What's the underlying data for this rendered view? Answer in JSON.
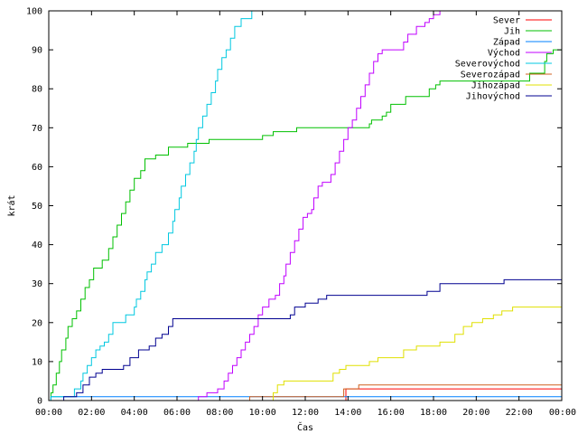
{
  "chart_data": {
    "type": "line",
    "xlabel": "Čas",
    "ylabel": "krát",
    "xlim": [
      0,
      24
    ],
    "ylim": [
      0,
      100
    ],
    "x_ticks": [
      0,
      2,
      4,
      6,
      8,
      10,
      12,
      14,
      16,
      18,
      20,
      22,
      24
    ],
    "x_tick_labels": [
      "00:00",
      "02:00",
      "04:00",
      "06:00",
      "08:00",
      "10:00",
      "12:00",
      "14:00",
      "16:00",
      "18:00",
      "20:00",
      "22:00",
      "00:00"
    ],
    "y_ticks": [
      0,
      10,
      20,
      30,
      40,
      50,
      60,
      70,
      80,
      90,
      100
    ],
    "y_tick_labels": [
      "0",
      "10",
      "20",
      "30",
      "40",
      "50",
      "60",
      "70",
      "80",
      "90",
      "100"
    ],
    "grid": false,
    "legend_position": "top-right",
    "step": true,
    "series": [
      {
        "name": "Sever",
        "color": "#ff0000",
        "points": [
          [
            0,
            0
          ],
          [
            13.9,
            0
          ],
          [
            13.9,
            3
          ],
          [
            24,
            3
          ]
        ]
      },
      {
        "name": "Jih",
        "color": "#00c000",
        "points": [
          [
            0,
            0
          ],
          [
            0.1,
            2
          ],
          [
            0.2,
            4
          ],
          [
            0.35,
            7
          ],
          [
            0.5,
            10
          ],
          [
            0.6,
            13
          ],
          [
            0.8,
            16
          ],
          [
            0.9,
            19
          ],
          [
            1.1,
            21
          ],
          [
            1.3,
            23
          ],
          [
            1.5,
            26
          ],
          [
            1.7,
            29
          ],
          [
            1.9,
            31
          ],
          [
            2.1,
            34
          ],
          [
            2.5,
            36
          ],
          [
            2.8,
            39
          ],
          [
            3.0,
            42
          ],
          [
            3.2,
            45
          ],
          [
            3.4,
            48
          ],
          [
            3.6,
            51
          ],
          [
            3.8,
            54
          ],
          [
            4.0,
            57
          ],
          [
            4.3,
            59
          ],
          [
            4.5,
            62
          ],
          [
            5.0,
            63
          ],
          [
            5.6,
            65
          ],
          [
            6.5,
            66
          ],
          [
            7.5,
            67
          ],
          [
            10.0,
            68
          ],
          [
            10.5,
            69
          ],
          [
            11.3,
            69
          ],
          [
            11.6,
            70
          ],
          [
            13.0,
            70
          ],
          [
            14.0,
            70
          ],
          [
            15.0,
            71
          ],
          [
            15.1,
            72
          ],
          [
            15.6,
            73
          ],
          [
            15.8,
            74
          ],
          [
            16.0,
            76
          ],
          [
            16.7,
            78
          ],
          [
            17.8,
            80
          ],
          [
            18.1,
            81
          ],
          [
            18.3,
            82
          ],
          [
            20.0,
            82
          ],
          [
            22.5,
            84
          ],
          [
            23.2,
            87
          ],
          [
            23.3,
            89
          ],
          [
            23.6,
            90
          ],
          [
            24,
            91
          ]
        ]
      },
      {
        "name": "Západ",
        "color": "#0080ff",
        "points": [
          [
            0,
            0
          ],
          [
            0.1,
            1
          ],
          [
            0.5,
            1
          ],
          [
            0.7,
            1
          ],
          [
            24,
            1
          ]
        ]
      },
      {
        "name": "Východ",
        "color": "#c000ff",
        "points": [
          [
            0,
            0
          ],
          [
            6.9,
            0
          ],
          [
            7.0,
            1
          ],
          [
            7.4,
            2
          ],
          [
            7.9,
            3
          ],
          [
            8.2,
            5
          ],
          [
            8.4,
            7
          ],
          [
            8.6,
            9
          ],
          [
            8.8,
            11
          ],
          [
            9.0,
            13
          ],
          [
            9.2,
            15
          ],
          [
            9.4,
            17
          ],
          [
            9.6,
            19
          ],
          [
            9.8,
            22
          ],
          [
            10.0,
            24
          ],
          [
            10.3,
            26
          ],
          [
            10.6,
            27
          ],
          [
            10.8,
            30
          ],
          [
            11.0,
            32
          ],
          [
            11.1,
            35
          ],
          [
            11.3,
            38
          ],
          [
            11.5,
            41
          ],
          [
            11.7,
            44
          ],
          [
            11.9,
            47
          ],
          [
            12.1,
            48
          ],
          [
            12.3,
            49
          ],
          [
            12.4,
            52
          ],
          [
            12.6,
            55
          ],
          [
            12.8,
            56
          ],
          [
            13.2,
            58
          ],
          [
            13.4,
            61
          ],
          [
            13.6,
            64
          ],
          [
            13.8,
            67
          ],
          [
            14.0,
            70
          ],
          [
            14.2,
            72
          ],
          [
            14.4,
            75
          ],
          [
            14.6,
            78
          ],
          [
            14.8,
            81
          ],
          [
            15.0,
            84
          ],
          [
            15.2,
            87
          ],
          [
            15.4,
            89
          ],
          [
            15.6,
            90
          ],
          [
            16.0,
            90
          ],
          [
            16.6,
            92
          ],
          [
            16.8,
            94
          ],
          [
            17.2,
            96
          ],
          [
            17.6,
            97
          ],
          [
            17.8,
            98
          ],
          [
            18.0,
            99
          ],
          [
            18.3,
            100
          ],
          [
            24,
            100
          ]
        ]
      },
      {
        "name": "Severovýchod",
        "color": "#00c8e0",
        "points": [
          [
            0,
            0
          ],
          [
            0.1,
            1
          ],
          [
            1.2,
            3
          ],
          [
            1.5,
            5
          ],
          [
            1.6,
            7
          ],
          [
            1.8,
            9
          ],
          [
            2.0,
            11
          ],
          [
            2.2,
            13
          ],
          [
            2.4,
            14
          ],
          [
            2.6,
            15
          ],
          [
            2.8,
            17
          ],
          [
            3.0,
            20
          ],
          [
            3.6,
            22
          ],
          [
            4.0,
            24
          ],
          [
            4.1,
            26
          ],
          [
            4.3,
            28
          ],
          [
            4.5,
            31
          ],
          [
            4.6,
            33
          ],
          [
            4.8,
            35
          ],
          [
            5.0,
            38
          ],
          [
            5.3,
            40
          ],
          [
            5.6,
            43
          ],
          [
            5.8,
            46
          ],
          [
            5.9,
            49
          ],
          [
            6.1,
            52
          ],
          [
            6.2,
            55
          ],
          [
            6.4,
            58
          ],
          [
            6.6,
            61
          ],
          [
            6.8,
            64
          ],
          [
            6.9,
            67
          ],
          [
            7.0,
            70
          ],
          [
            7.2,
            73
          ],
          [
            7.4,
            76
          ],
          [
            7.6,
            79
          ],
          [
            7.8,
            82
          ],
          [
            7.9,
            85
          ],
          [
            8.1,
            88
          ],
          [
            8.3,
            90
          ],
          [
            8.5,
            93
          ],
          [
            8.7,
            96
          ],
          [
            9.0,
            98
          ],
          [
            9.5,
            100
          ],
          [
            24,
            100
          ]
        ]
      },
      {
        "name": "Severozápad",
        "color": "#d06020",
        "points": [
          [
            0,
            0
          ],
          [
            9.4,
            0
          ],
          [
            9.4,
            1
          ],
          [
            11.0,
            1
          ],
          [
            13.8,
            1
          ],
          [
            13.8,
            3
          ],
          [
            14.5,
            4
          ],
          [
            24,
            4
          ]
        ]
      },
      {
        "name": "Jihozápad",
        "color": "#e0e000",
        "points": [
          [
            0,
            0
          ],
          [
            10.5,
            0
          ],
          [
            10.5,
            2
          ],
          [
            10.7,
            4
          ],
          [
            11.0,
            5
          ],
          [
            13.3,
            7
          ],
          [
            13.6,
            8
          ],
          [
            13.9,
            9
          ],
          [
            15.0,
            10
          ],
          [
            15.4,
            11
          ],
          [
            16.6,
            13
          ],
          [
            17.2,
            14
          ],
          [
            18.3,
            15
          ],
          [
            19.0,
            17
          ],
          [
            19.4,
            19
          ],
          [
            19.8,
            20
          ],
          [
            20.3,
            21
          ],
          [
            20.8,
            22
          ],
          [
            21.2,
            23
          ],
          [
            21.7,
            24
          ],
          [
            24,
            24
          ]
        ]
      },
      {
        "name": "Jihovýchod",
        "color": "#000090",
        "points": [
          [
            0,
            0
          ],
          [
            0.5,
            0
          ],
          [
            0.7,
            1
          ],
          [
            1.3,
            2
          ],
          [
            1.6,
            4
          ],
          [
            1.9,
            6
          ],
          [
            2.2,
            7
          ],
          [
            2.5,
            8
          ],
          [
            3.5,
            9
          ],
          [
            3.8,
            11
          ],
          [
            4.2,
            13
          ],
          [
            4.7,
            14
          ],
          [
            5.0,
            16
          ],
          [
            5.3,
            17
          ],
          [
            5.6,
            19
          ],
          [
            5.8,
            21
          ],
          [
            9.0,
            21
          ],
          [
            11.3,
            22
          ],
          [
            11.5,
            24
          ],
          [
            12.0,
            25
          ],
          [
            12.6,
            26
          ],
          [
            13.0,
            27
          ],
          [
            15.0,
            27
          ],
          [
            17.7,
            28
          ],
          [
            18.3,
            30
          ],
          [
            20.5,
            30
          ],
          [
            21.3,
            31
          ],
          [
            24,
            31
          ]
        ]
      }
    ]
  }
}
